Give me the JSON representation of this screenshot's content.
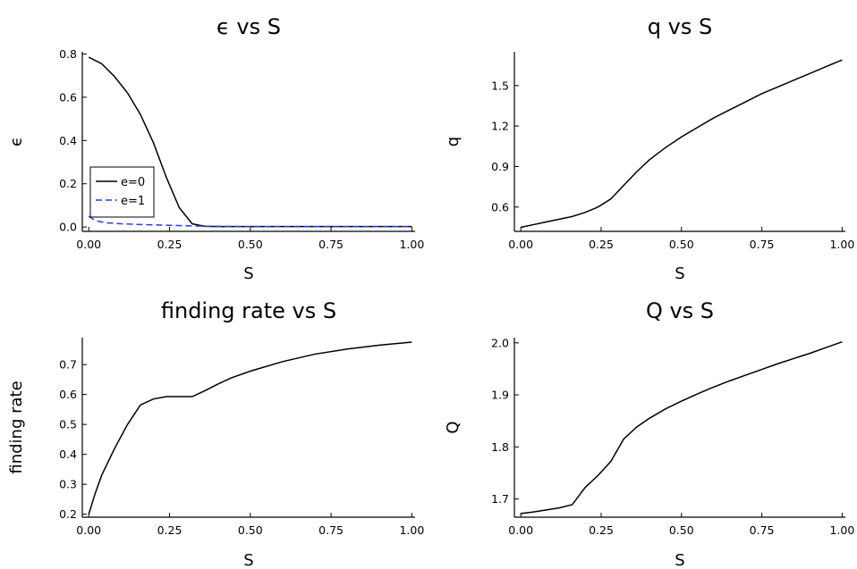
{
  "chart_data": [
    {
      "type": "line",
      "title": "ϵ vs S",
      "xlabel": "S",
      "ylabel": "ϵ",
      "xlim": [
        -0.02,
        1.01
      ],
      "ylim": [
        -0.02,
        0.81
      ],
      "xticks": [
        0.0,
        0.25,
        0.5,
        0.75,
        1.0
      ],
      "xtick_labels": [
        "0.00",
        "0.25",
        "0.50",
        "0.75",
        "1.00"
      ],
      "yticks": [
        0.0,
        0.2,
        0.4,
        0.6,
        0.8
      ],
      "ytick_labels": [
        "0.0",
        "0.2",
        "0.4",
        "0.6",
        "0.8"
      ],
      "grid": false,
      "legend": "bottom-left",
      "series": [
        {
          "name": "e=0",
          "color": "#000000",
          "dash": "solid",
          "x": [
            0.0,
            0.04,
            0.08,
            0.12,
            0.16,
            0.2,
            0.24,
            0.28,
            0.32,
            0.36,
            0.4,
            0.5,
            0.6,
            0.7,
            0.8,
            0.9,
            1.0
          ],
          "y": [
            0.785,
            0.755,
            0.695,
            0.62,
            0.52,
            0.39,
            0.23,
            0.09,
            0.015,
            0.003,
            0.002,
            0.002,
            0.002,
            0.002,
            0.002,
            0.002,
            0.002
          ]
        },
        {
          "name": "e=1",
          "color": "#2b3de0",
          "dash": "dash",
          "x": [
            0.0,
            0.02,
            0.05,
            0.1,
            0.15,
            0.2,
            0.25,
            0.3,
            0.35,
            0.4,
            0.5,
            0.6,
            0.7,
            0.8,
            0.9,
            1.0
          ],
          "y": [
            0.05,
            0.03,
            0.02,
            0.015,
            0.012,
            0.01,
            0.008,
            0.006,
            0.004,
            0.003,
            0.002,
            0.002,
            0.002,
            0.002,
            0.002,
            0.002
          ]
        }
      ]
    },
    {
      "type": "line",
      "title": "q vs S",
      "xlabel": "S",
      "ylabel": "q",
      "xlim": [
        -0.02,
        1.01
      ],
      "ylim": [
        0.42,
        1.75
      ],
      "xticks": [
        0.0,
        0.25,
        0.5,
        0.75,
        1.0
      ],
      "xtick_labels": [
        "0.00",
        "0.25",
        "0.50",
        "0.75",
        "1.00"
      ],
      "yticks": [
        0.6,
        0.9,
        1.2,
        1.5
      ],
      "ytick_labels": [
        "0.6",
        "0.9",
        "1.2",
        "1.5"
      ],
      "grid": false,
      "series": [
        {
          "color": "#000000",
          "dash": "solid",
          "x": [
            0.0,
            0.04,
            0.08,
            0.12,
            0.16,
            0.2,
            0.24,
            0.28,
            0.32,
            0.36,
            0.4,
            0.45,
            0.5,
            0.55,
            0.6,
            0.65,
            0.7,
            0.75,
            0.8,
            0.85,
            0.9,
            0.95,
            1.0
          ],
          "y": [
            0.45,
            0.47,
            0.49,
            0.51,
            0.53,
            0.56,
            0.6,
            0.66,
            0.76,
            0.86,
            0.95,
            1.04,
            1.12,
            1.19,
            1.26,
            1.32,
            1.38,
            1.44,
            1.49,
            1.54,
            1.59,
            1.64,
            1.69
          ]
        }
      ]
    },
    {
      "type": "line",
      "title": "finding rate vs S",
      "xlabel": "S",
      "ylabel": "finding rate",
      "xlim": [
        -0.02,
        1.01
      ],
      "ylim": [
        0.19,
        0.79
      ],
      "xticks": [
        0.0,
        0.25,
        0.5,
        0.75,
        1.0
      ],
      "xtick_labels": [
        "0.00",
        "0.25",
        "0.50",
        "0.75",
        "1.00"
      ],
      "yticks": [
        0.2,
        0.3,
        0.4,
        0.5,
        0.6,
        0.7
      ],
      "ytick_labels": [
        "0.2",
        "0.3",
        "0.4",
        "0.5",
        "0.6",
        "0.7"
      ],
      "grid": false,
      "series": [
        {
          "color": "#000000",
          "dash": "solid",
          "x": [
            0.0,
            0.02,
            0.04,
            0.08,
            0.12,
            0.16,
            0.2,
            0.24,
            0.28,
            0.32,
            0.36,
            0.4,
            0.44,
            0.5,
            0.6,
            0.7,
            0.8,
            0.9,
            1.0
          ],
          "y": [
            0.2,
            0.27,
            0.33,
            0.42,
            0.5,
            0.565,
            0.585,
            0.593,
            0.593,
            0.593,
            0.613,
            0.635,
            0.655,
            0.678,
            0.71,
            0.735,
            0.752,
            0.765,
            0.775
          ]
        }
      ]
    },
    {
      "type": "line",
      "title": "Q vs S",
      "xlabel": "S",
      "ylabel": "Q",
      "xlim": [
        -0.02,
        1.01
      ],
      "ylim": [
        1.665,
        2.01
      ],
      "xticks": [
        0.0,
        0.25,
        0.5,
        0.75,
        1.0
      ],
      "xtick_labels": [
        "0.00",
        "0.25",
        "0.50",
        "0.75",
        "1.00"
      ],
      "yticks": [
        1.7,
        1.8,
        1.9,
        2.0
      ],
      "ytick_labels": [
        "1.7",
        "1.8",
        "1.9",
        "2.0"
      ],
      "grid": false,
      "series": [
        {
          "color": "#000000",
          "dash": "solid",
          "x": [
            0.0,
            0.04,
            0.08,
            0.12,
            0.16,
            0.2,
            0.24,
            0.28,
            0.32,
            0.36,
            0.4,
            0.45,
            0.5,
            0.55,
            0.6,
            0.65,
            0.7,
            0.75,
            0.8,
            0.85,
            0.9,
            0.95,
            1.0
          ],
          "y": [
            1.672,
            1.675,
            1.679,
            1.683,
            1.689,
            1.722,
            1.745,
            1.772,
            1.815,
            1.838,
            1.855,
            1.873,
            1.888,
            1.902,
            1.915,
            1.927,
            1.938,
            1.949,
            1.96,
            1.97,
            1.98,
            1.991,
            2.002
          ]
        }
      ]
    }
  ]
}
